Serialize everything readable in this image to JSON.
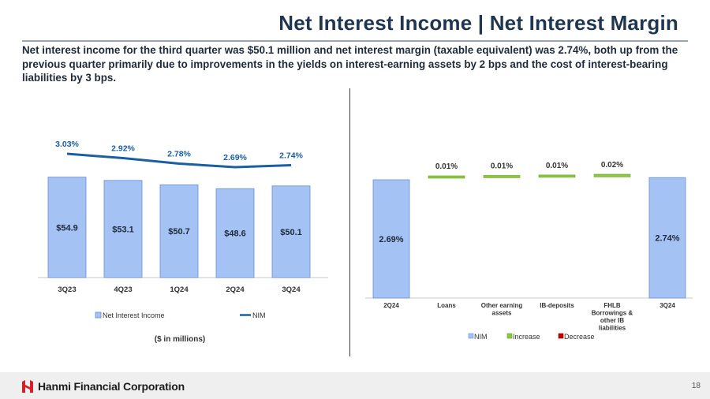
{
  "header": {
    "title": "Net Interest Income | Net Interest Margin",
    "description": "Net interest income for the third quarter was $50.1 million and net interest margin (taxable equivalent) was 2.74%, both up from the previous quarter primarily due to improvements in the yields on interest-earning assets by 2 bps and the cost of interest-bearing liabilities by 3 bps."
  },
  "footer": {
    "company": "Hanmi Financial Corporation",
    "page_number": "18"
  },
  "colors": {
    "bar": "#a4c2f4",
    "bar_edge": "#6a8fd0",
    "nim_line": "#1b5fa3",
    "increase": "#8dc63f",
    "decrease": "#c00000",
    "title": "#1f3550"
  },
  "chart_data": [
    {
      "type": "bar",
      "categories": [
        "3Q23",
        "4Q23",
        "1Q24",
        "2Q24",
        "3Q24"
      ],
      "series": [
        {
          "name": "Net Interest Income",
          "type": "bar",
          "values": [
            54.9,
            53.1,
            50.7,
            48.6,
            50.1
          ],
          "labels": [
            "$54.9",
            "$53.1",
            "$50.7",
            "$48.6",
            "$50.1"
          ]
        },
        {
          "name": "NIM",
          "type": "line",
          "values": [
            3.03,
            2.92,
            2.78,
            2.69,
            2.74
          ],
          "labels": [
            "3.03%",
            "2.92%",
            "2.78%",
            "2.69%",
            "2.74%"
          ]
        }
      ],
      "legend_position": "bottom",
      "note": "($ in millions)",
      "grid": false
    },
    {
      "type": "bar",
      "subtype": "waterfall",
      "categories": [
        "2Q24",
        "Loans",
        "Other earning assets",
        "IB-deposits",
        "FHLB Borrowings & other IB liabilities",
        "3Q24"
      ],
      "values": [
        2.69,
        0.01,
        0.01,
        0.01,
        0.02,
        2.74
      ],
      "labels": [
        "2.69%",
        "0.01%",
        "0.01%",
        "0.01%",
        "0.02%",
        "2.74%"
      ],
      "kinds": [
        "total",
        "increase",
        "increase",
        "increase",
        "increase",
        "total"
      ],
      "legend": [
        "NIM",
        "Increase",
        "Decrease"
      ],
      "legend_position": "bottom",
      "grid": false
    }
  ]
}
